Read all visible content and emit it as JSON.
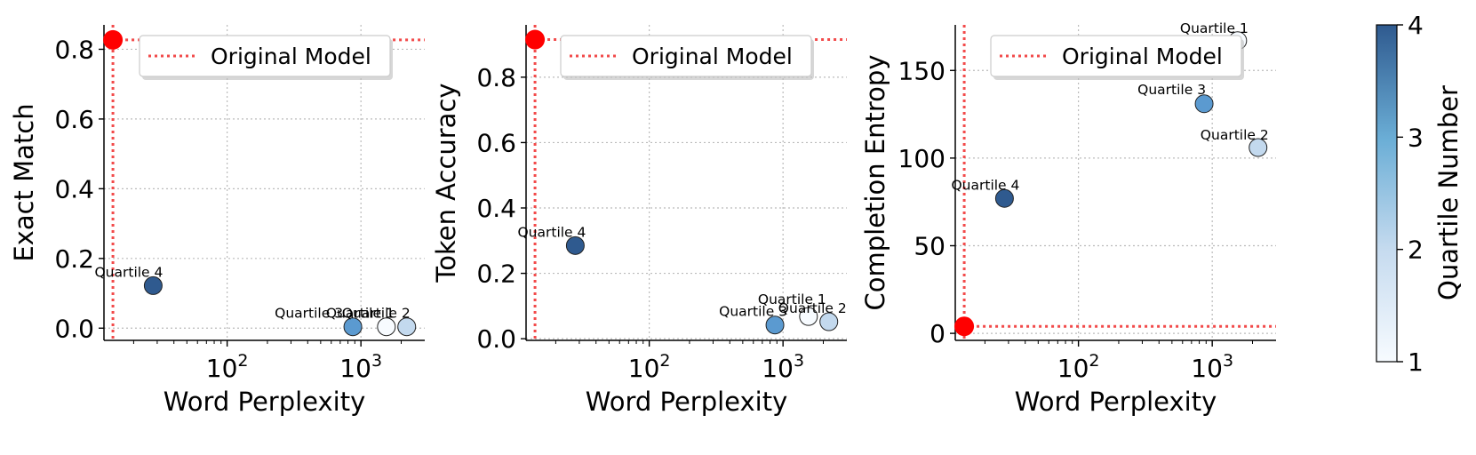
{
  "chart_data": [
    {
      "type": "scatter",
      "xlabel": "Word Perplexity",
      "ylabel": "Exact Match",
      "xscale": "log",
      "xlim": [
        12,
        3000
      ],
      "ylim": [
        -0.035,
        0.87
      ],
      "yticks": [
        0.0,
        0.2,
        0.4,
        0.6,
        0.8
      ],
      "ytick_labels": [
        "0.0",
        "0.2",
        "0.4",
        "0.6",
        "0.8"
      ],
      "xticks": [
        100,
        1000
      ],
      "grid": true,
      "legend": {
        "label": "Original Model",
        "placement": "top-center"
      },
      "original_model": {
        "x": 14,
        "y": 0.827
      },
      "points": [
        {
          "label": "Quartile 4",
          "x": 28,
          "y": 0.122,
          "quartile": 4
        },
        {
          "label": "Quartile 3",
          "x": 870,
          "y": 0.004,
          "quartile": 3
        },
        {
          "label": "Quartile 1",
          "x": 1550,
          "y": 0.004,
          "quartile": 1
        },
        {
          "label": "Quartile 2",
          "x": 2200,
          "y": 0.004,
          "quartile": 2
        }
      ]
    },
    {
      "type": "scatter",
      "xlabel": "Word Perplexity",
      "ylabel": "Token Accuracy",
      "xscale": "log",
      "xlim": [
        12,
        3000
      ],
      "ylim": [
        -0.005,
        0.96
      ],
      "yticks": [
        0.0,
        0.2,
        0.4,
        0.6,
        0.8
      ],
      "ytick_labels": [
        "0.0",
        "0.2",
        "0.4",
        "0.6",
        "0.8"
      ],
      "xticks": [
        100,
        1000
      ],
      "grid": true,
      "legend": {
        "label": "Original Model",
        "placement": "top-center"
      },
      "original_model": {
        "x": 14,
        "y": 0.915
      },
      "points": [
        {
          "label": "Quartile 4",
          "x": 28,
          "y": 0.285,
          "quartile": 4
        },
        {
          "label": "Quartile 3",
          "x": 870,
          "y": 0.042,
          "quartile": 3
        },
        {
          "label": "Quartile 1",
          "x": 1550,
          "y": 0.068,
          "quartile": 1
        },
        {
          "label": "Quartile 2",
          "x": 2200,
          "y": 0.052,
          "quartile": 2
        }
      ]
    },
    {
      "type": "scatter",
      "xlabel": "Word Perplexity",
      "ylabel": "Completion Entropy",
      "xscale": "log",
      "xlim": [
        12,
        3000
      ],
      "ylim": [
        -4,
        176
      ],
      "yticks": [
        0,
        50,
        100,
        150
      ],
      "ytick_labels": [
        "0",
        "50",
        "100",
        "150"
      ],
      "xticks": [
        100,
        1000
      ],
      "grid": true,
      "legend": {
        "label": "Original Model",
        "placement": "top-center"
      },
      "original_model": {
        "x": 14,
        "y": 4
      },
      "points": [
        {
          "label": "Quartile 4",
          "x": 28,
          "y": 77,
          "quartile": 4
        },
        {
          "label": "Quartile 3",
          "x": 870,
          "y": 131,
          "quartile": 3
        },
        {
          "label": "Quartile 1",
          "x": 1550,
          "y": 167,
          "quartile": 1
        },
        {
          "label": "Quartile 2",
          "x": 2200,
          "y": 106,
          "quartile": 2
        }
      ]
    }
  ],
  "colorbar": {
    "label": "Quartile Number",
    "min": 1,
    "max": 4,
    "ticks": [
      "1",
      "2",
      "3",
      "4"
    ],
    "colors": [
      "#f7fbff",
      "#c6dbef",
      "#6baed6",
      "#2f5a8f"
    ]
  },
  "colors": {
    "original_model": "#ff0000",
    "reference_line": "#f24a4a",
    "grid": "#bbbbbb",
    "quartile_1": "#f7fbff",
    "quartile_2": "#c3d9ee",
    "quartile_3": "#5b9ad0",
    "quartile_4": "#2f5a8f"
  }
}
